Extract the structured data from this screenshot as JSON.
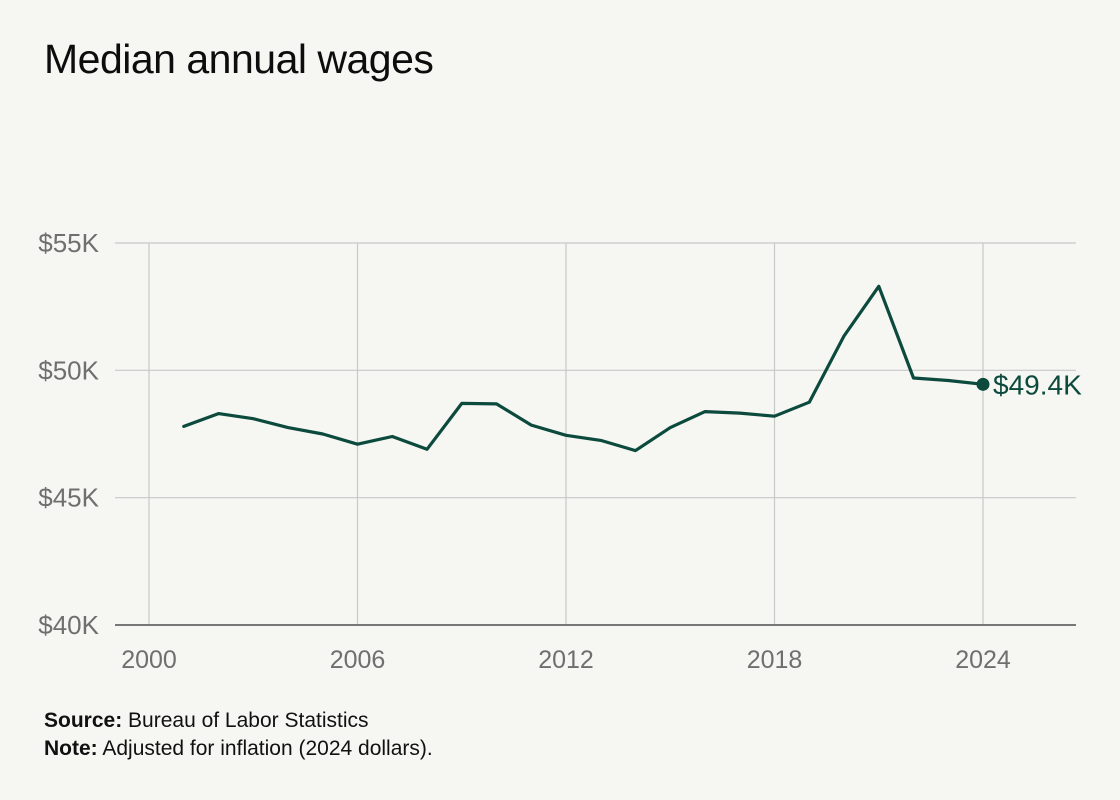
{
  "chart_data": {
    "type": "line",
    "title": "Median annual wages",
    "xlabel": "",
    "ylabel": "",
    "xlim": [
      1999,
      2026
    ],
    "ylim": [
      40000,
      55000
    ],
    "x_ticks": [
      {
        "value": 2000,
        "label": "2000"
      },
      {
        "value": 2006,
        "label": "2006"
      },
      {
        "value": 2012,
        "label": "2012"
      },
      {
        "value": 2018,
        "label": "2018"
      },
      {
        "value": 2024,
        "label": "2024"
      }
    ],
    "y_ticks": [
      {
        "value": 40000,
        "label": "$40K"
      },
      {
        "value": 45000,
        "label": "$45K"
      },
      {
        "value": 50000,
        "label": "$50K"
      },
      {
        "value": 55000,
        "label": "$55K"
      }
    ],
    "grid": true,
    "series": [
      {
        "color": "#0b4a3c",
        "x": [
          2001,
          2002,
          2003,
          2004,
          2005,
          2006,
          2007,
          2008,
          2009,
          2010,
          2011,
          2012,
          2013,
          2014,
          2015,
          2016,
          2017,
          2018,
          2019,
          2020,
          2021,
          2022,
          2023,
          2024
        ],
        "y": [
          47800,
          48300,
          48100,
          47750,
          47500,
          47100,
          47400,
          46900,
          48700,
          48680,
          47850,
          47450,
          47250,
          46850,
          47750,
          48380,
          48320,
          48200,
          48750,
          51350,
          53300,
          49700,
          49600,
          49450
        ]
      }
    ],
    "annotations": [
      {
        "x": 2024,
        "y": 49450,
        "text": "$49.4K"
      }
    ]
  },
  "footnotes": {
    "source_label": "Source:",
    "source_text": "Bureau of Labor Statistics",
    "note_label": "Note:",
    "note_text": "Adjusted for inflation (2024 dollars)."
  },
  "colors": {
    "background": "#f6f6f2",
    "line": "#0b4a3c",
    "grid": "#c8c8c8",
    "axis": "#777777",
    "tick_label": "#6f6f6f"
  }
}
